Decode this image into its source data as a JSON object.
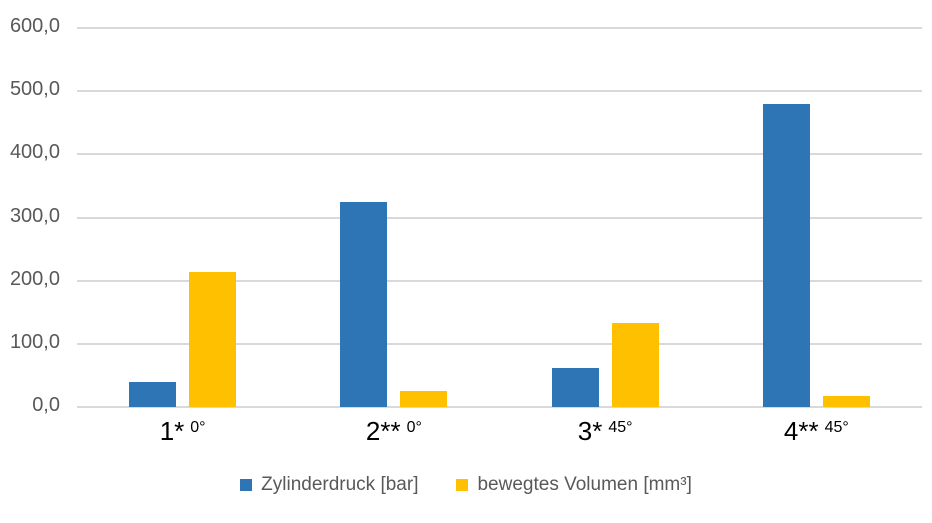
{
  "chart": {
    "background_color": "#ffffff",
    "gridline_color": "#d9d9d9",
    "y_axis_label_color": "#595959",
    "category_label_color": "#000000",
    "series1_color": "#2e75b6",
    "series2_color": "#ffc000"
  },
  "chart_data": {
    "type": "bar",
    "title": "",
    "categories": [
      "1* 0°",
      "2** 0°",
      "3* 45°",
      "4** 45°"
    ],
    "categories_parts": [
      {
        "main": "1*",
        "degree": "0°"
      },
      {
        "main": "2**",
        "degree": "0°"
      },
      {
        "main": "3*",
        "degree": "45°"
      },
      {
        "main": "4**",
        "degree": "45°"
      }
    ],
    "series": [
      {
        "name": "Zylinderdruck [bar]",
        "color": "#2e75b6",
        "values": [
          40,
          325,
          62,
          480
        ]
      },
      {
        "name": "bewegtes Volumen [mm³]",
        "color": "#ffc000",
        "values": [
          214,
          26,
          133,
          17
        ]
      }
    ],
    "y_axis": {
      "min": 0,
      "max": 600,
      "step": 100,
      "tick_labels": [
        "0,0",
        "100,0",
        "200,0",
        "300,0",
        "400,0",
        "500,0",
        "600,0"
      ]
    },
    "xlabel": "",
    "ylabel": "",
    "grid": true,
    "legend_position": "bottom"
  }
}
